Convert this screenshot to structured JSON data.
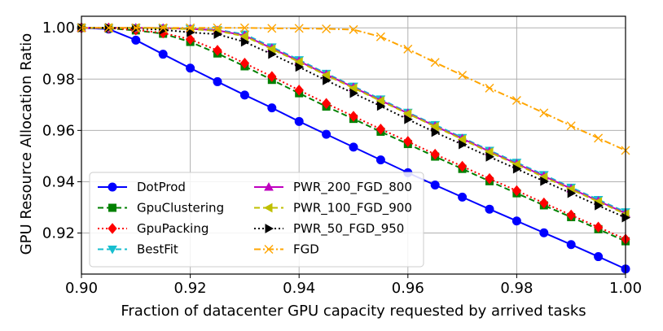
{
  "chart_data": {
    "type": "line",
    "title": "",
    "xlabel": "Fraction of datacenter GPU capacity requested by arrived tasks",
    "ylabel": "GPU Resource Allocation Ratio",
    "xlim": [
      0.9,
      1.0
    ],
    "ylim": [
      0.904,
      1.0045
    ],
    "grid": true,
    "legend_position": "lower-left",
    "x_ticks": [
      0.9,
      0.92,
      0.94,
      0.96,
      0.98,
      1.0
    ],
    "x_tick_labels": [
      "0.90",
      "0.92",
      "0.94",
      "0.96",
      "0.98",
      "1.00"
    ],
    "y_ticks": [
      0.92,
      0.94,
      0.96,
      0.98,
      1.0
    ],
    "y_tick_labels": [
      "0.92",
      "0.94",
      "0.96",
      "0.98",
      "1.00"
    ],
    "x": [
      0.9,
      0.905,
      0.91,
      0.915,
      0.92,
      0.925,
      0.93,
      0.935,
      0.94,
      0.945,
      0.95,
      0.955,
      0.96,
      0.965,
      0.97,
      0.975,
      0.98,
      0.985,
      0.99,
      0.995,
      1.0
    ],
    "series": [
      {
        "name": "DotProd",
        "color": "#0000ff",
        "dash": "solid",
        "marker": "circle",
        "values": [
          1.0,
          0.9995,
          0.9952,
          0.9897,
          0.9843,
          0.979,
          0.9738,
          0.9688,
          0.9635,
          0.9585,
          0.9535,
          0.9485,
          0.9435,
          0.9387,
          0.934,
          0.9293,
          0.9247,
          0.9201,
          0.9155,
          0.9108,
          0.906
        ]
      },
      {
        "name": "GpuClustering",
        "color": "#008000",
        "dash": "dashed",
        "marker": "square",
        "values": [
          1.0,
          0.9998,
          0.999,
          0.9977,
          0.9945,
          0.99,
          0.985,
          0.9797,
          0.9745,
          0.9693,
          0.9645,
          0.9595,
          0.9547,
          0.9498,
          0.945,
          0.9402,
          0.9355,
          0.9308,
          0.9262,
          0.9215,
          0.9168
        ]
      },
      {
        "name": "GpuPacking",
        "color": "#ff0000",
        "dash": "dotted",
        "marker": "diamond",
        "values": [
          1.0,
          0.9999,
          0.9992,
          0.998,
          0.9955,
          0.9912,
          0.9862,
          0.981,
          0.9757,
          0.9705,
          0.9655,
          0.9605,
          0.9557,
          0.9507,
          0.946,
          0.9412,
          0.9365,
          0.9317,
          0.927,
          0.9223,
          0.9176
        ]
      },
      {
        "name": "BestFit",
        "color": "#17becf",
        "dash": "dashed",
        "marker": "triangle-down",
        "values": [
          1.0,
          1.0,
          1.0,
          0.9999,
          0.9997,
          0.9992,
          0.9975,
          0.9925,
          0.9875,
          0.9822,
          0.9772,
          0.9722,
          0.967,
          0.9622,
          0.9572,
          0.9522,
          0.9475,
          0.9427,
          0.9378,
          0.933,
          0.9282
        ]
      },
      {
        "name": "PWR_200_FGD_800",
        "color": "#bf00bf",
        "dash": "solid",
        "marker": "triangle-up",
        "values": [
          1.0,
          1.0,
          1.0,
          0.9999,
          0.9996,
          0.999,
          0.997,
          0.992,
          0.987,
          0.9818,
          0.9768,
          0.9717,
          0.9667,
          0.9617,
          0.9568,
          0.9518,
          0.947,
          0.9422,
          0.9373,
          0.9325,
          0.9277
        ]
      },
      {
        "name": "PWR_100_FGD_900",
        "color": "#bfbf00",
        "dash": "dashed",
        "marker": "triangle-left",
        "values": [
          1.0,
          1.0,
          1.0,
          0.9998,
          0.9995,
          0.9988,
          0.9967,
          0.9917,
          0.9867,
          0.9815,
          0.9765,
          0.9715,
          0.9665,
          0.9615,
          0.9565,
          0.9515,
          0.9467,
          0.9418,
          0.937,
          0.9322,
          0.9274
        ]
      },
      {
        "name": "PWR_50_FGD_950",
        "color": "#000000",
        "dash": "dotted",
        "marker": "triangle-right",
        "values": [
          1.0,
          1.0,
          0.9998,
          0.9992,
          0.9982,
          0.9975,
          0.9945,
          0.9897,
          0.9847,
          0.9795,
          0.9745,
          0.9695,
          0.9643,
          0.9593,
          0.9545,
          0.9497,
          0.945,
          0.9402,
          0.9355,
          0.9307,
          0.926
        ]
      },
      {
        "name": "FGD",
        "color": "#ffa500",
        "dash": "dashdot",
        "marker": "x",
        "values": [
          1.0,
          1.0,
          1.0,
          1.0,
          1.0,
          1.0,
          1.0,
          0.9998,
          0.9998,
          0.9996,
          0.9993,
          0.9965,
          0.9917,
          0.9865,
          0.9815,
          0.9765,
          0.9717,
          0.9668,
          0.9618,
          0.957,
          0.9522
        ]
      }
    ]
  }
}
